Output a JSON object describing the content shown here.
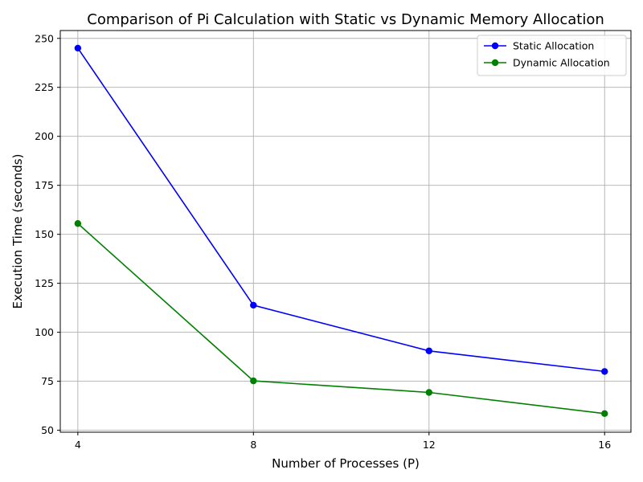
{
  "chart_data": {
    "type": "line",
    "title": "Comparison of Pi Calculation with Static vs Dynamic Memory Allocation",
    "xlabel": "Number of Processes (P)",
    "ylabel": "Execution Time (seconds)",
    "x": [
      4,
      8,
      12,
      16
    ],
    "x_ticks": [
      "4",
      "8",
      "12",
      "16"
    ],
    "y_ticks": [
      "50",
      "75",
      "100",
      "125",
      "150",
      "175",
      "200",
      "225",
      "250"
    ],
    "ylim": [
      49,
      254
    ],
    "xlim": [
      3.6,
      16.6
    ],
    "grid": true,
    "legend_position": "top-right",
    "series": [
      {
        "name": "Static Allocation",
        "color": "#0000ff",
        "marker": "circle",
        "values": [
          245,
          113.8,
          90.5,
          80
        ]
      },
      {
        "name": "Dynamic Allocation",
        "color": "#008000",
        "marker": "circle",
        "values": [
          155.5,
          75.2,
          69.3,
          58.5
        ]
      }
    ]
  }
}
